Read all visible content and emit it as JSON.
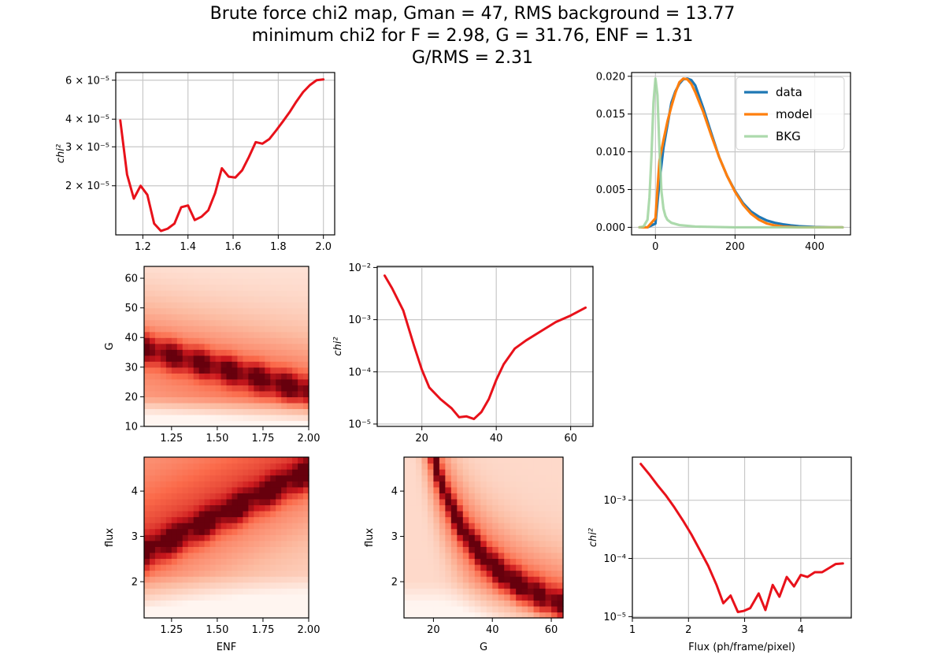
{
  "title": {
    "line1": "Brute force chi2 map, Gman = 47, RMS background = 13.77",
    "line2": "minimum chi2 for F = 2.98, G = 31.76, ENF = 1.31",
    "line3": "G/RMS = 2.31"
  },
  "colors": {
    "red_line": "#e8111a",
    "data": "#1f77b4",
    "model": "#ff7f0e",
    "bkg": "#9ed39e",
    "grid": "#c8c8c8",
    "heat_low": "#fff5f0",
    "heat_high": "#67000d"
  },
  "chart_data": [
    {
      "id": "chi2-vs-enf",
      "type": "line",
      "xlabel": "",
      "ylabel": "chi²",
      "yscale": "log",
      "grid": true,
      "xlim": [
        1.08,
        2.05
      ],
      "ylim": [
        1.2e-05,
        6.5e-05
      ],
      "xticks": [
        1.2,
        1.4,
        1.6,
        1.8,
        2.0
      ],
      "xtick_labels": [
        "1.2",
        "1.4",
        "1.6",
        "1.8",
        "2.0"
      ],
      "yticks": [
        2e-05,
        3e-05,
        4e-05,
        6e-05
      ],
      "ytick_labels": [
        "2 × 10⁻⁵",
        "3 × 10⁻⁵",
        "4 × 10⁻⁵",
        "6 × 10⁻⁵"
      ],
      "series": [
        {
          "x": [
            1.1,
            1.13,
            1.16,
            1.19,
            1.22,
            1.25,
            1.28,
            1.31,
            1.34,
            1.37,
            1.4,
            1.43,
            1.46,
            1.49,
            1.52,
            1.55,
            1.58,
            1.61,
            1.64,
            1.67,
            1.7,
            1.73,
            1.76,
            1.79,
            1.82,
            1.85,
            1.88,
            1.91,
            1.94,
            1.97,
            2.0
          ],
          "y": [
            3.95e-05,
            2.25e-05,
            1.75e-05,
            2e-05,
            1.82e-05,
            1.35e-05,
            1.25e-05,
            1.28e-05,
            1.35e-05,
            1.6e-05,
            1.63e-05,
            1.4e-05,
            1.45e-05,
            1.55e-05,
            1.85e-05,
            2.4e-05,
            2.2e-05,
            2.18e-05,
            2.35e-05,
            2.7e-05,
            3.15e-05,
            3.1e-05,
            3.25e-05,
            3.55e-05,
            3.9e-05,
            4.3e-05,
            4.8e-05,
            5.3e-05,
            5.7e-05,
            6e-05,
            6.05e-05
          ]
        }
      ]
    },
    {
      "id": "histogram-fit",
      "type": "line",
      "xlabel": "",
      "ylabel": "",
      "grid": true,
      "xlim": [
        -60,
        490
      ],
      "ylim": [
        -0.001,
        0.0205
      ],
      "xticks": [
        0,
        200,
        400
      ],
      "xtick_labels": [
        "0",
        "200",
        "400"
      ],
      "yticks": [
        0.0,
        0.005,
        0.01,
        0.015,
        0.02
      ],
      "ytick_labels": [
        "0.000",
        "0.005",
        "0.010",
        "0.015",
        "0.020"
      ],
      "legend": "top-right",
      "series": [
        {
          "name": "data",
          "x": [
            -40,
            -20,
            0,
            10,
            20,
            30,
            40,
            50,
            60,
            70,
            80,
            90,
            100,
            120,
            140,
            160,
            180,
            200,
            220,
            240,
            260,
            280,
            300,
            320,
            340,
            360,
            380,
            400,
            440,
            470
          ],
          "y": [
            0.0,
            0.0,
            0.0005,
            0.006,
            0.0105,
            0.0135,
            0.0165,
            0.018,
            0.019,
            0.0196,
            0.0197,
            0.0195,
            0.0188,
            0.0158,
            0.0125,
            0.0093,
            0.0068,
            0.0048,
            0.0032,
            0.0021,
            0.0014,
            0.0009,
            0.0006,
            0.0004,
            0.00025,
            0.00015,
            0.0001,
            5e-05,
            0.0,
            0.0
          ]
        },
        {
          "name": "model",
          "x": [
            -40,
            -20,
            0,
            10,
            20,
            30,
            40,
            50,
            60,
            70,
            80,
            90,
            100,
            120,
            140,
            160,
            180,
            200,
            220,
            240,
            260,
            280,
            300,
            320,
            340,
            360,
            380,
            400,
            440,
            470
          ],
          "y": [
            0.0,
            0.0,
            0.0012,
            0.0088,
            0.0115,
            0.014,
            0.016,
            0.0178,
            0.0192,
            0.0197,
            0.0196,
            0.019,
            0.0179,
            0.0153,
            0.0122,
            0.0093,
            0.0068,
            0.0047,
            0.003,
            0.0018,
            0.001,
            0.0005,
            0.00025,
            0.0001,
            5e-05,
            0.0,
            0.0,
            0.0,
            0.0,
            0.0
          ]
        },
        {
          "name": "BKG",
          "x": [
            -40,
            -30,
            -20,
            -15,
            -10,
            -5,
            0,
            5,
            10,
            15,
            20,
            25,
            30,
            40,
            60,
            100,
            200,
            300,
            400,
            470
          ],
          "y": [
            0.0,
            0.0001,
            0.001,
            0.004,
            0.0095,
            0.0165,
            0.0197,
            0.0175,
            0.0105,
            0.0048,
            0.0025,
            0.0015,
            0.001,
            0.0006,
            0.0003,
            0.0001,
            0.0,
            0.0,
            0.0,
            0.0
          ]
        }
      ]
    },
    {
      "id": "heatmap-enf-g",
      "type": "heatmap",
      "xlabel": "",
      "ylabel": "G",
      "xlim": [
        1.1,
        2.0
      ],
      "ylim": [
        10,
        64
      ],
      "xticks": [
        1.25,
        1.5,
        1.75,
        2.0
      ],
      "xtick_labels": [
        "1.25",
        "1.50",
        "1.75",
        "2.00"
      ],
      "yticks": [
        10,
        20,
        30,
        40,
        50,
        60
      ],
      "ytick_labels": [
        "10",
        "20",
        "30",
        "40",
        "50",
        "60"
      ],
      "ridge": {
        "x_start": 1.1,
        "y_start": 36.5,
        "x_end": 2.0,
        "y_end": 22.0,
        "width": 4.5
      },
      "nx": 30,
      "ny": 27
    },
    {
      "id": "chi2-vs-g",
      "type": "line",
      "xlabel": "",
      "ylabel": "chi²",
      "yscale": "log",
      "grid": true,
      "xlim": [
        8,
        66
      ],
      "ylim": [
        9e-06,
        0.0105
      ],
      "xticks": [
        20,
        40,
        60
      ],
      "xtick_labels": [
        "20",
        "40",
        "60"
      ],
      "yticks": [
        1e-05,
        0.0001,
        0.001,
        0.01
      ],
      "ytick_labels": [
        "10⁻⁵",
        "10⁻⁴",
        "10⁻³",
        "10⁻²"
      ],
      "series": [
        {
          "x": [
            10,
            12,
            15,
            18,
            20,
            22,
            25,
            28,
            30,
            32,
            34,
            36,
            38,
            40,
            42,
            45,
            48,
            52,
            56,
            60,
            64
          ],
          "y": [
            0.007,
            0.004,
            0.0015,
            0.0003,
            0.00011,
            5e-05,
            3e-05,
            2e-05,
            1.35e-05,
            1.4e-05,
            1.25e-05,
            1.7e-05,
            3e-05,
            7e-05,
            0.00014,
            0.00028,
            0.0004,
            0.0006,
            0.0009,
            0.0012,
            0.0017
          ]
        }
      ]
    },
    {
      "id": "heatmap-enf-flux",
      "type": "heatmap",
      "xlabel": "ENF",
      "ylabel": "flux",
      "xlim": [
        1.1,
        2.0
      ],
      "ylim": [
        1.2,
        4.75
      ],
      "xticks": [
        1.25,
        1.5,
        1.75,
        2.0
      ],
      "xtick_labels": [
        "1.25",
        "1.50",
        "1.75",
        "2.00"
      ],
      "yticks": [
        2,
        3,
        4
      ],
      "ytick_labels": [
        "2",
        "3",
        "4"
      ],
      "ridge": {
        "x_start": 1.1,
        "y_start": 2.6,
        "x_end": 2.0,
        "y_end": 4.4,
        "width": 0.32
      },
      "nx": 30,
      "ny": 27
    },
    {
      "id": "heatmap-g-flux",
      "type": "heatmap",
      "xlabel": "G",
      "ylabel": "flux",
      "xlim": [
        10,
        64
      ],
      "ylim": [
        1.2,
        4.75
      ],
      "xticks": [
        20,
        40,
        60
      ],
      "xtick_labels": [
        "20",
        "40",
        "60"
      ],
      "yticks": [
        2,
        3,
        4
      ],
      "ytick_labels": [
        "2",
        "3",
        "4"
      ],
      "ridge_curve": {
        "k": 95,
        "width": 0.32
      },
      "nx": 27,
      "ny": 27
    },
    {
      "id": "chi2-vs-flux",
      "type": "line",
      "xlabel": "Flux (ph/frame/pixel)",
      "ylabel": "chi²",
      "yscale": "log",
      "grid": true,
      "xlim": [
        1.0,
        4.9
      ],
      "ylim": [
        9.5e-06,
        0.0055
      ],
      "xticks": [
        1,
        2,
        3,
        4
      ],
      "xtick_labels": [
        "1",
        "2",
        "3",
        "4"
      ],
      "yticks": [
        1e-05,
        0.0001,
        0.001
      ],
      "ytick_labels": [
        "10⁻⁵",
        "10⁻⁴",
        "10⁻³"
      ],
      "series": [
        {
          "x": [
            1.15,
            1.3,
            1.45,
            1.6,
            1.75,
            1.9,
            2.05,
            2.2,
            2.35,
            2.5,
            2.62,
            2.75,
            2.88,
            2.98,
            3.1,
            3.25,
            3.37,
            3.5,
            3.62,
            3.75,
            3.88,
            4.0,
            4.12,
            4.25,
            4.38,
            4.5,
            4.62,
            4.75
          ],
          "y": [
            0.0042,
            0.0028,
            0.0018,
            0.0012,
            0.00075,
            0.00045,
            0.00026,
            0.00014,
            7.5e-05,
            3.5e-05,
            1.7e-05,
            2.3e-05,
            1.2e-05,
            1.25e-05,
            1.4e-05,
            2.5e-05,
            1.3e-05,
            3.5e-05,
            2.2e-05,
            4.8e-05,
            3.3e-05,
            5.2e-05,
            4.8e-05,
            5.8e-05,
            5.8e-05,
            6.8e-05,
            8e-05,
            8.2e-05
          ]
        }
      ]
    }
  ]
}
